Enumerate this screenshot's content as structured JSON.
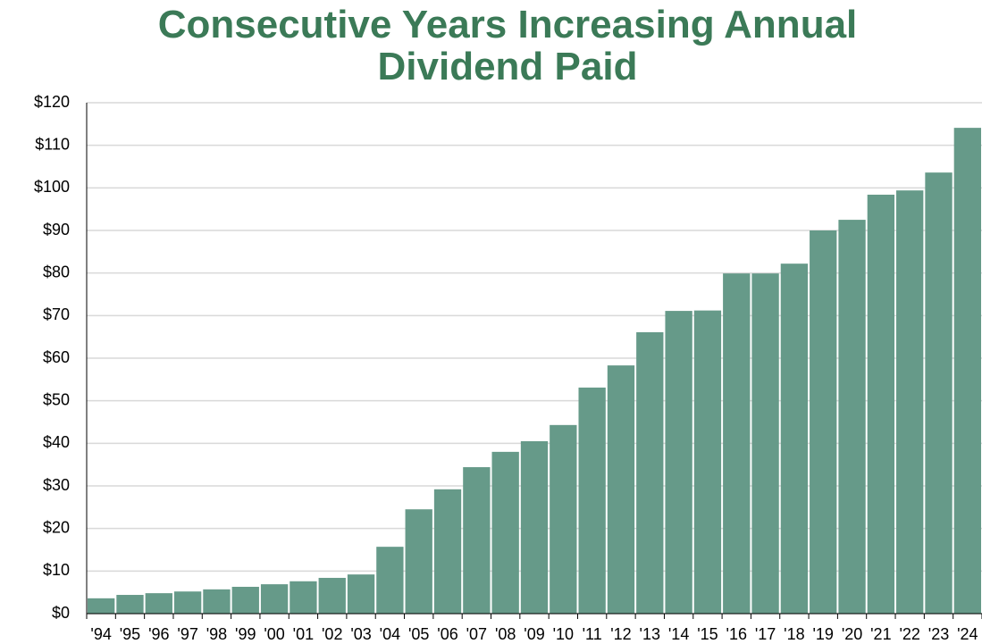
{
  "chart_data": {
    "type": "bar",
    "title": "Consecutive Years Increasing Annual Dividend Paid",
    "title_color": "#3b7a57",
    "categories": [
      "'94",
      "'95",
      "'96",
      "'97",
      "'98",
      "'99",
      "'00",
      "'01",
      "'02",
      "'03",
      "'04",
      "'05",
      "'06",
      "'07",
      "'08",
      "'09",
      "'10",
      "'11",
      "'12",
      "'13",
      "'14",
      "'15",
      "'16",
      "'17",
      "'18",
      "'19",
      "'20",
      "'21",
      "'22",
      "'23",
      "'24"
    ],
    "values": [
      3.6,
      4.4,
      4.8,
      5.2,
      5.7,
      6.3,
      6.9,
      7.6,
      8.4,
      9.2,
      15.7,
      24.5,
      29.2,
      34.4,
      38,
      40.5,
      44.3,
      53.1,
      58.3,
      66.1,
      71.1,
      71.2,
      79.9,
      79.9,
      82.2,
      90,
      92.5,
      98.4,
      99.4,
      103.6,
      114.1
    ],
    "color": "#669a89",
    "ylim": [
      0,
      120
    ],
    "yticks": [
      {
        "value": 0,
        "label": "$0"
      },
      {
        "value": 10,
        "label": "$10"
      },
      {
        "value": 20,
        "label": "$20"
      },
      {
        "value": 30,
        "label": "$30"
      },
      {
        "value": 40,
        "label": "$40"
      },
      {
        "value": 50,
        "label": "$50"
      },
      {
        "value": 60,
        "label": "$60"
      },
      {
        "value": 70,
        "label": "$70"
      },
      {
        "value": 80,
        "label": "$80"
      },
      {
        "value": 90,
        "label": "$90"
      },
      {
        "value": 100,
        "label": "$100"
      },
      {
        "value": 110,
        "label": "$110"
      },
      {
        "value": 120,
        "label": "$120"
      }
    ],
    "grid": true
  }
}
